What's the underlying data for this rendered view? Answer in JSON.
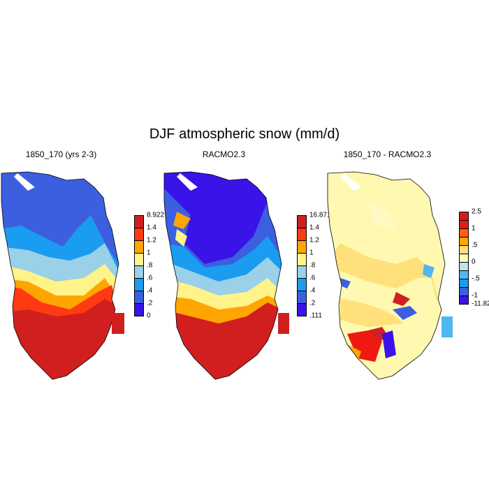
{
  "title": "DJF atmospheric snow (mm/d)",
  "panels": [
    {
      "title": "1850_170 (yrs 2-3)",
      "colorbar": {
        "colors": [
          "#3a13e9",
          "#3c5fe0",
          "#1a9cf0",
          "#9ad0e8",
          "#fff38a",
          "#ffa500",
          "#ff3a12",
          "#d11f1f"
        ],
        "labels": [
          "0",
          ".2",
          ".4",
          ".6",
          ".8",
          "1",
          "1.2",
          "1.4",
          "8.922"
        ]
      }
    },
    {
      "title": "RACMO2.3",
      "colorbar": {
        "colors": [
          "#3a13e9",
          "#3c5fe0",
          "#1a9cf0",
          "#9ad0e8",
          "#fff38a",
          "#ffa500",
          "#ff3a12",
          "#d11f1f"
        ],
        "labels": [
          ".111",
          ".2",
          ".4",
          ".6",
          ".8",
          "1",
          "1.2",
          "1.4",
          "16.871"
        ]
      }
    },
    {
      "title": "1850_170 - RACMO2.3",
      "colorbar": {
        "colors": [
          "#3a13e9",
          "#3c5fe0",
          "#1a9cf0",
          "#4fb7f2",
          "#b8e4f3",
          "#fff8b0",
          "#ffe07a",
          "#ffa500",
          "#ff6010",
          "#ee1a12",
          "#d11f1f"
        ],
        "labels": [
          "-11.82",
          "-1",
          "",
          "-.5",
          "",
          "0",
          "",
          ".5",
          "",
          "1",
          "",
          "2.5"
        ]
      }
    }
  ]
}
